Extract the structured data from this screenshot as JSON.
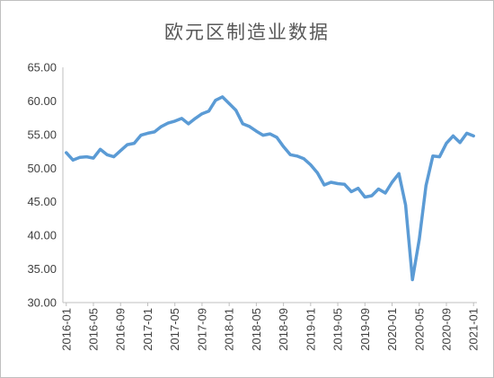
{
  "chart_data": {
    "type": "line",
    "title": "欧元区制造业数据",
    "xlabel": "",
    "ylabel": "",
    "ylim": [
      30,
      65
    ],
    "y_ticks": [
      "30.00",
      "35.00",
      "40.00",
      "45.00",
      "50.00",
      "55.00",
      "60.00",
      "65.00"
    ],
    "x_tick_labels": [
      "2016-01",
      "2016-05",
      "2016-09",
      "2017-01",
      "2017-05",
      "2017-09",
      "2018-01",
      "2018-05",
      "2018-09",
      "2019-01",
      "2019-05",
      "2019-09",
      "2020-01",
      "2020-05",
      "2020-09",
      "2021-01"
    ],
    "grid": false,
    "line_color": "#5b9bd5",
    "x": [
      "2016-01",
      "2016-02",
      "2016-03",
      "2016-04",
      "2016-05",
      "2016-06",
      "2016-07",
      "2016-08",
      "2016-09",
      "2016-10",
      "2016-11",
      "2016-12",
      "2017-01",
      "2017-02",
      "2017-03",
      "2017-04",
      "2017-05",
      "2017-06",
      "2017-07",
      "2017-08",
      "2017-09",
      "2017-10",
      "2017-11",
      "2017-12",
      "2018-01",
      "2018-02",
      "2018-03",
      "2018-04",
      "2018-05",
      "2018-06",
      "2018-07",
      "2018-08",
      "2018-09",
      "2018-10",
      "2018-11",
      "2018-12",
      "2019-01",
      "2019-02",
      "2019-03",
      "2019-04",
      "2019-05",
      "2019-06",
      "2019-07",
      "2019-08",
      "2019-09",
      "2019-10",
      "2019-11",
      "2019-12",
      "2020-01",
      "2020-02",
      "2020-03",
      "2020-04",
      "2020-05",
      "2020-06",
      "2020-07",
      "2020-08",
      "2020-09",
      "2020-10",
      "2020-11",
      "2020-12",
      "2021-01"
    ],
    "series": [
      {
        "values": [
          52.3,
          51.2,
          51.6,
          51.7,
          51.5,
          52.8,
          52.0,
          51.7,
          52.6,
          53.5,
          53.7,
          54.9,
          55.2,
          55.4,
          56.2,
          56.7,
          57.0,
          57.4,
          56.6,
          57.4,
          58.1,
          58.5,
          60.1,
          60.6,
          59.6,
          58.6,
          56.6,
          56.2,
          55.5,
          54.9,
          55.1,
          54.6,
          53.2,
          52.0,
          51.8,
          51.4,
          50.5,
          49.3,
          47.5,
          47.9,
          47.7,
          47.6,
          46.5,
          47.0,
          45.7,
          45.9,
          46.9,
          46.3,
          47.9,
          49.2,
          44.5,
          33.4,
          39.4,
          47.4,
          51.8,
          51.7,
          53.7,
          54.8,
          53.8,
          55.2,
          54.8
        ]
      }
    ]
  }
}
